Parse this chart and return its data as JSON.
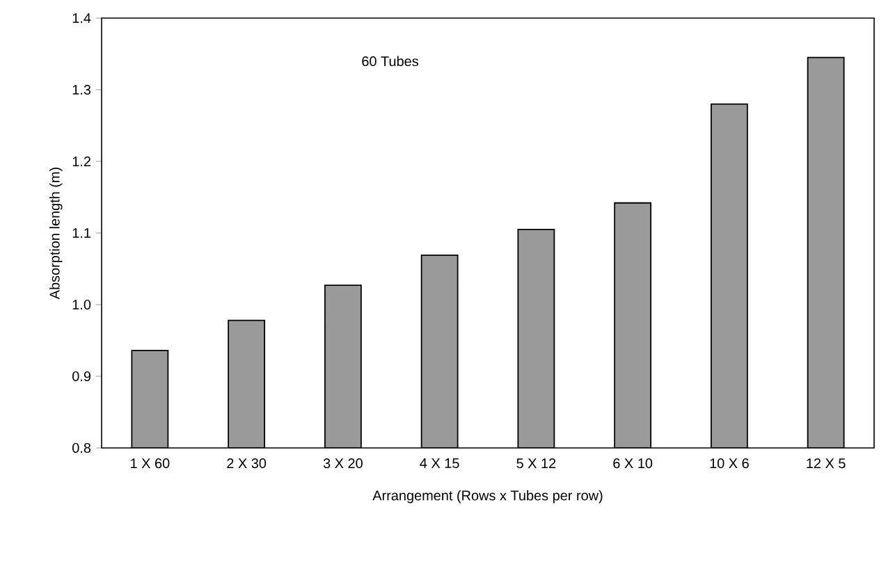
{
  "chart_data": {
    "type": "bar",
    "xlabel": "Arrangement (Rows x Tubes per row)",
    "ylabel": "Absorption length (m)",
    "annotations": [
      "60 Tubes"
    ],
    "categories": [
      "1 X 60",
      "2 X 30",
      "3 X 20",
      "4 X 15",
      "5 X 12",
      "6 X 10",
      "10 X 6",
      "12 X 5"
    ],
    "values": [
      0.936,
      0.978,
      1.027,
      1.069,
      1.105,
      1.142,
      1.28,
      1.345
    ],
    "color": "#9a9a9a",
    "ylim": [
      0.8,
      1.4
    ],
    "yticks": [
      {
        "value": 0.8,
        "label": "0.8"
      },
      {
        "value": 0.9,
        "label": "0.9"
      },
      {
        "value": 1.0,
        "label": "1.0"
      },
      {
        "value": 1.1,
        "label": "1.1"
      },
      {
        "value": 1.2,
        "label": "1.2"
      },
      {
        "value": 1.3,
        "label": "1.3"
      },
      {
        "value": 1.4,
        "label": "1.4"
      }
    ],
    "grid": false
  }
}
